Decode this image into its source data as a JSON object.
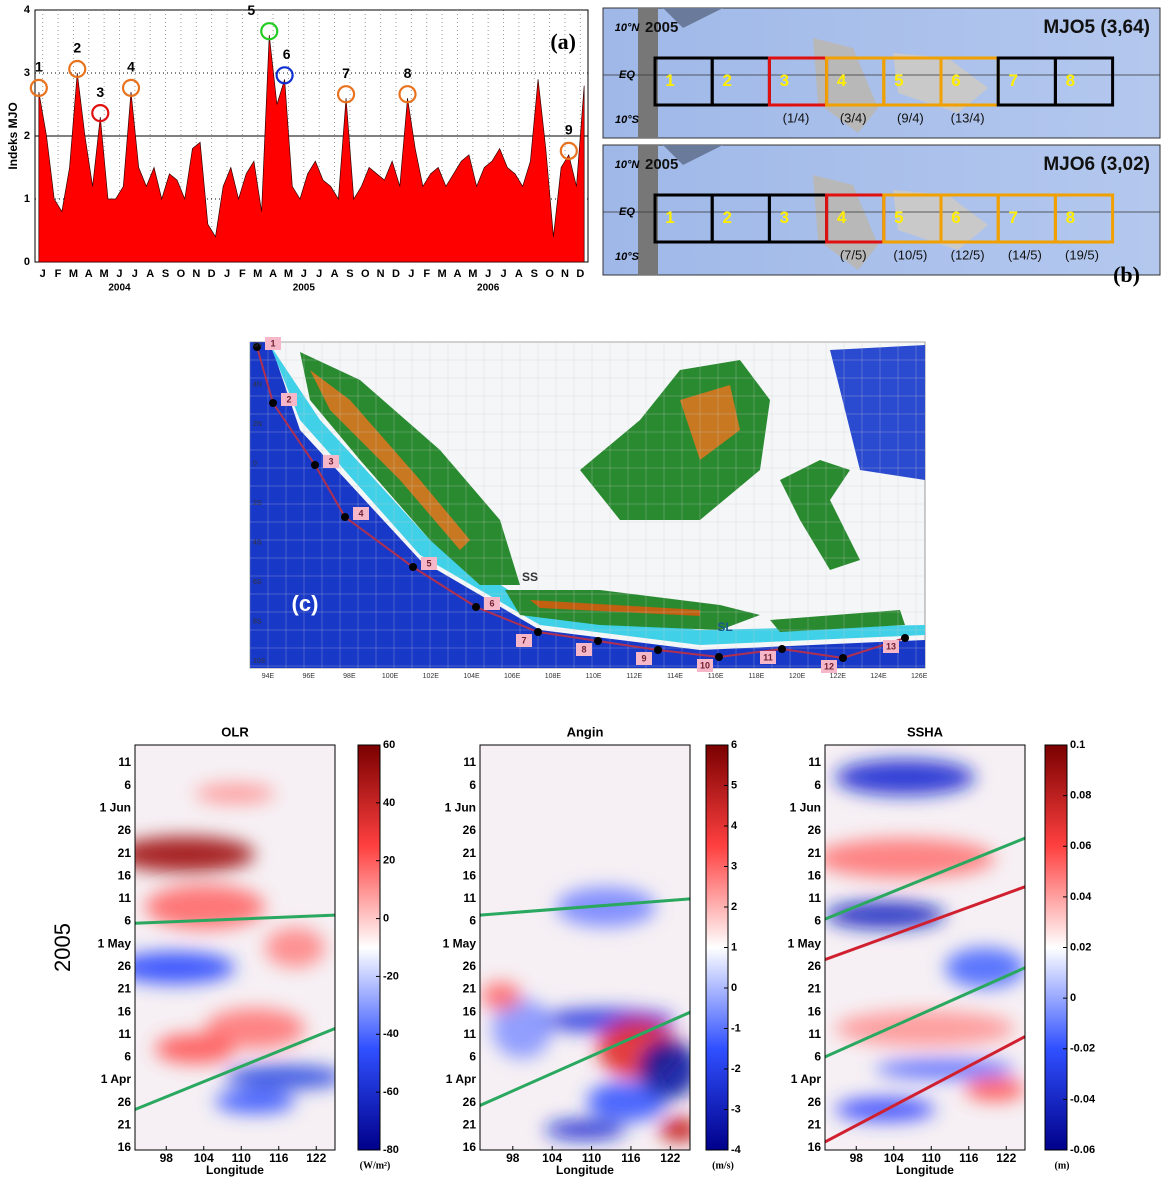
{
  "panel_a": {
    "type": "area",
    "ylabel": "Indeks MJO",
    "panel_label": "(a)",
    "color": "#ff0000",
    "ylim": [
      0,
      4
    ],
    "yticks": [
      0,
      1,
      2,
      3,
      4
    ],
    "months": [
      "J",
      "F",
      "M",
      "A",
      "M",
      "J",
      "J",
      "A",
      "S",
      "O",
      "N",
      "D",
      "J",
      "F",
      "M",
      "A",
      "M",
      "J",
      "J",
      "A",
      "S",
      "O",
      "N",
      "D",
      "J",
      "F",
      "M",
      "A",
      "M",
      "J",
      "J",
      "A",
      "S",
      "O",
      "N",
      "D"
    ],
    "years": [
      "2004",
      "2005",
      "2006"
    ],
    "values": [
      2.7,
      2.0,
      1.0,
      0.8,
      1.5,
      3.0,
      2.0,
      1.2,
      2.3,
      1.0,
      1.0,
      1.2,
      2.7,
      1.5,
      1.2,
      1.5,
      1.0,
      1.4,
      1.3,
      1.0,
      1.8,
      1.9,
      0.6,
      0.4,
      1.2,
      1.5,
      1.0,
      1.4,
      1.6,
      0.8,
      3.6,
      2.5,
      2.9,
      1.2,
      1.0,
      1.4,
      1.6,
      1.3,
      1.2,
      1.0,
      2.6,
      1.0,
      1.2,
      1.5,
      1.4,
      1.3,
      1.6,
      1.2,
      2.6,
      1.8,
      1.2,
      1.4,
      1.5,
      1.2,
      1.4,
      1.6,
      1.7,
      1.2,
      1.5,
      1.6,
      1.8,
      1.5,
      1.4,
      1.2,
      1.6,
      2.9,
      1.8,
      0.4,
      1.5,
      1.7,
      1.2,
      2.8
    ],
    "events": [
      {
        "label": "1",
        "color": "#e8731e"
      },
      {
        "label": "2",
        "color": "#e8731e"
      },
      {
        "label": "3",
        "color": "#e01010"
      },
      {
        "label": "4",
        "color": "#e8731e"
      },
      {
        "label": "5",
        "color": "#22cc22"
      },
      {
        "label": "6",
        "color": "#1030d0"
      },
      {
        "label": "7",
        "color": "#e8731e"
      },
      {
        "label": "8",
        "color": "#e8731e"
      },
      {
        "label": "9",
        "color": "#e8731e"
      }
    ]
  },
  "panel_b": {
    "panel_label": "(b)",
    "lat_labels": [
      "10°N",
      "EQ",
      "10°S"
    ],
    "rows": [
      {
        "year": "2005",
        "title": "MJO5 (3,64)",
        "boxes": [
          "1",
          "2",
          "3",
          "4",
          "5",
          "6",
          "7",
          "8"
        ],
        "box_colors": [
          "#000",
          "#000",
          "#e01010",
          "#f0a000",
          "#f0a000",
          "#f0a000",
          "#000",
          "#000"
        ],
        "dates": [
          null,
          null,
          "(1/4)",
          "(3/4)",
          "(9/4)",
          "(13/4)",
          null,
          null
        ]
      },
      {
        "year": "2005",
        "title": "MJO6 (3,02)",
        "boxes": [
          "1",
          "2",
          "3",
          "4",
          "5",
          "6",
          "7",
          "8"
        ],
        "box_colors": [
          "#000",
          "#000",
          "#000",
          "#e01010",
          "#f0a000",
          "#f0a000",
          "#f0a000",
          "#f0a000"
        ],
        "dates": [
          null,
          null,
          null,
          "(7/5)",
          "(10/5)",
          "(12/5)",
          "(14/5)",
          "(19/5)"
        ]
      }
    ]
  },
  "panel_c": {
    "panel_label": "(c)",
    "strait_labels": [
      "SS",
      "SL"
    ],
    "points": [
      "1",
      "2",
      "3",
      "4",
      "5",
      "6",
      "7",
      "8",
      "9",
      "10",
      "11",
      "12",
      "13"
    ],
    "lon_labels": [
      "94E",
      "96E",
      "98E",
      "100E",
      "102E",
      "104E",
      "106E",
      "108E",
      "110E",
      "112E",
      "114E",
      "116E",
      "118E",
      "120E",
      "122E",
      "124E",
      "126E"
    ],
    "lat_labels": [
      "6N",
      "4N",
      "2N",
      "0",
      "2S",
      "4S",
      "6S",
      "8S",
      "10S"
    ]
  },
  "panel_d": {
    "year": "2005",
    "xlabel": "Longitude",
    "date_labels": [
      "16",
      "21",
      "26",
      "1 Apr",
      "6",
      "11",
      "16",
      "21",
      "26",
      "1 May",
      "6",
      "11",
      "16",
      "21",
      "26",
      "1 Jun",
      "6",
      "11"
    ],
    "xlim": [
      93,
      125
    ],
    "xticks": [
      98,
      104,
      110,
      116,
      122
    ],
    "plots": [
      {
        "title": "OLR",
        "unit": "(W/m²)",
        "cblim": [
          -80,
          60
        ],
        "cbticks": [
          60,
          40,
          20,
          0,
          -20,
          -40,
          -60,
          -80
        ]
      },
      {
        "title": "Angin",
        "unit": "(m/s)",
        "cblim": [
          -4,
          6
        ],
        "cbticks": [
          6,
          5,
          4,
          3,
          2,
          1,
          0,
          -1,
          -2,
          -3,
          -4
        ]
      },
      {
        "title": "SSHA",
        "unit": "(m)",
        "cblim": [
          -0.06,
          0.1
        ],
        "cbticks": [
          0.1,
          0.08,
          0.06,
          0.04,
          0.02,
          0,
          -0.02,
          -0.04,
          -0.06
        ]
      }
    ]
  }
}
